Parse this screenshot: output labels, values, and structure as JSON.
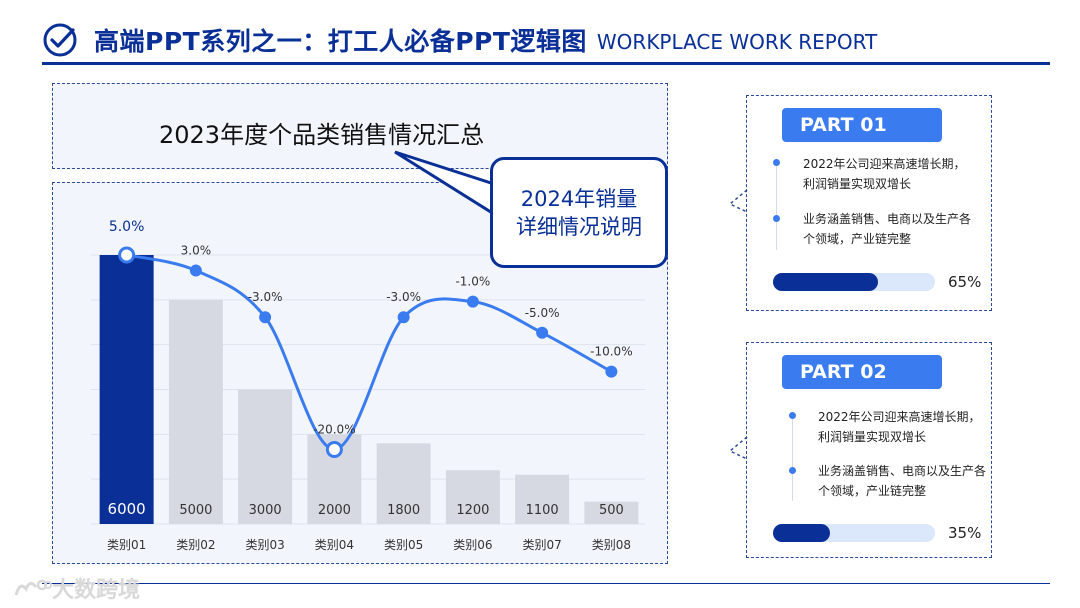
{
  "header": {
    "title": "高端PPT系列之一：打工人必备PPT逻辑图",
    "subtitle": "WORKPLACE WORK REPORT",
    "logo_icon": "check-circle-icon"
  },
  "colors": {
    "brand": "#0a2f96",
    "accent": "#3b7bf0",
    "bar_gray": "#d6d9e1",
    "box_bg": "#f2f6fc"
  },
  "chart_data": {
    "type": "bar",
    "title": "2023年度个品类销售情况汇总",
    "categories": [
      "类别01",
      "类别02",
      "类别03",
      "类别04",
      "类别05",
      "类别06",
      "类别07",
      "类别08"
    ],
    "series": [
      {
        "values": [
          6000,
          5000,
          3000,
          2000,
          1800,
          1200,
          1100,
          500
        ]
      },
      {
        "values": [
          5.0,
          3.0,
          -3.0,
          -20.0,
          -3.0,
          -1.0,
          -5.0,
          -10.0
        ]
      }
    ],
    "bar_labels": [
      "6000",
      "5000",
      "3000",
      "2000",
      "1800",
      "1200",
      "1100",
      "500"
    ],
    "line_labels": [
      "5.0%",
      "3.0%",
      "-3.0%",
      "-20.0%",
      "-3.0%",
      "-1.0%",
      "-5.0%",
      "-10.0%"
    ],
    "ylim": [
      0,
      6000
    ],
    "line_ylim": [
      -22,
      5
    ],
    "grid": true,
    "highlight_index": 0,
    "highlight_color": "#0a2f96"
  },
  "callout": {
    "line1": "2024年销量",
    "line2": "详细情况说明"
  },
  "parts": [
    {
      "badge": "PART 01",
      "item1": "2022年公司迎来高速增长期，利润销量实现双增长",
      "item2": "业务涵盖销售、电商以及生产各个领域，产业链完整",
      "progress": 0.65,
      "pct": "65%"
    },
    {
      "badge": "PART 02",
      "item1": "2022年公司迎来高速增长期，利润销量实现双增长",
      "item2": "业务涵盖销售、电商以及生产各个领域，产业链完整",
      "progress": 0.35,
      "pct": "35%"
    }
  ],
  "watermark": "大数跨境"
}
